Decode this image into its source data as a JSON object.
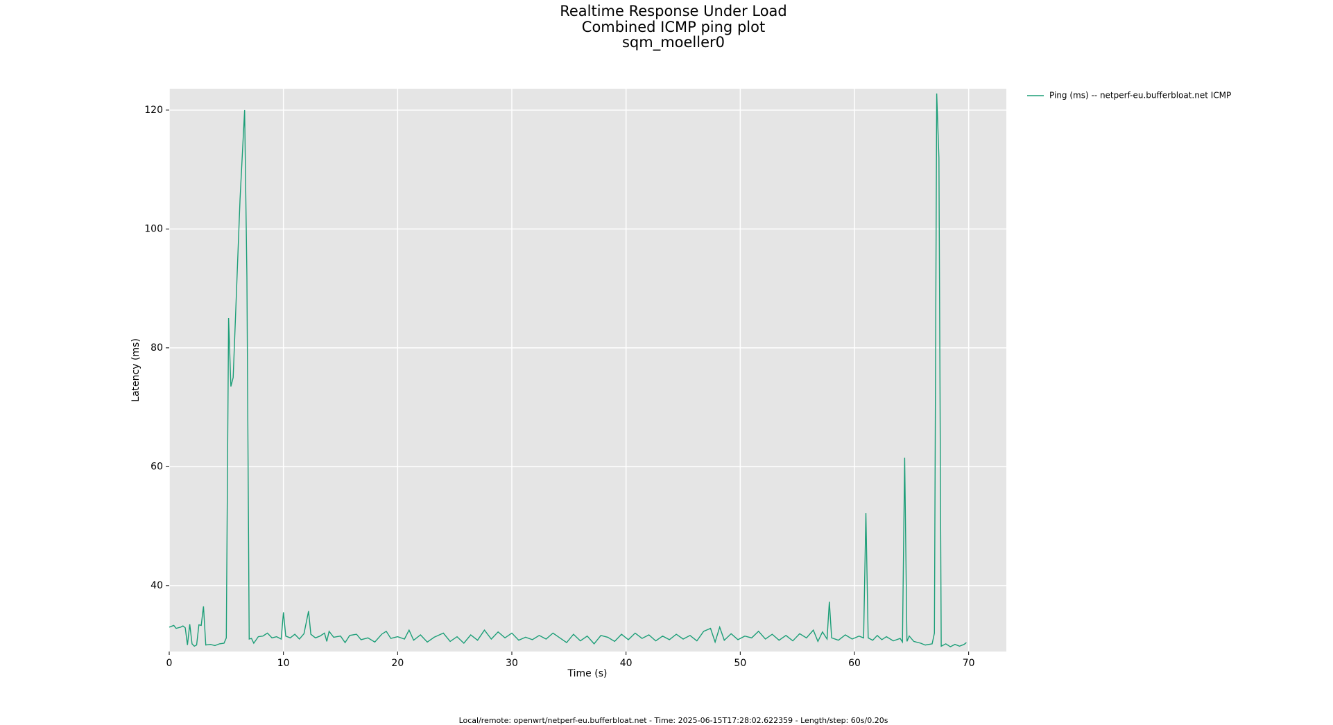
{
  "chart_data": {
    "type": "line",
    "title_lines": [
      "Realtime Response Under Load",
      "Combined ICMP ping plot",
      "sqm_moeller0"
    ],
    "x_label": "Time (s)",
    "y_label": "Latency (ms)",
    "footer": "Local/remote: openwrt/netperf-eu.bufferbloat.net - Time: 2025-06-15T17:28:02.622359 - Length/step: 60s/0.20s",
    "xlim": [
      0,
      73.3
    ],
    "ylim": [
      28.9,
      123.6
    ],
    "xticks": [
      0,
      10,
      20,
      30,
      40,
      50,
      60,
      70
    ],
    "yticks": [
      40,
      60,
      80,
      100,
      120
    ],
    "grid": true,
    "legend_position": "outside-top-right",
    "x": [
      0,
      0.4,
      0.6,
      1.0,
      1.2,
      1.4,
      1.6,
      1.8,
      2.0,
      2.2,
      2.4,
      2.6,
      2.8,
      3.0,
      3.2,
      3.6,
      4.0,
      4.4,
      4.8,
      5.0,
      5.2,
      5.4,
      5.6,
      5.8,
      6.0,
      6.2,
      6.6,
      6.8,
      7.0,
      7.2,
      7.4,
      7.8,
      8.2,
      8.6,
      9.0,
      9.4,
      9.8,
      10.0,
      10.2,
      10.6,
      11.0,
      11.4,
      11.8,
      12.2,
      12.4,
      12.8,
      13.2,
      13.6,
      13.8,
      14.0,
      14.4,
      15.0,
      15.4,
      15.8,
      16.4,
      16.8,
      17.4,
      18.0,
      18.6,
      19.0,
      19.4,
      20.0,
      20.6,
      21.0,
      21.4,
      22.0,
      22.6,
      23.2,
      24.0,
      24.6,
      25.2,
      25.8,
      26.4,
      27.0,
      27.6,
      28.2,
      28.8,
      29.4,
      30.0,
      30.6,
      31.2,
      31.8,
      32.4,
      33.0,
      33.6,
      34.2,
      34.8,
      35.4,
      36.0,
      36.6,
      37.2,
      37.8,
      38.4,
      39.0,
      39.6,
      40.2,
      40.8,
      41.4,
      42.0,
      42.6,
      43.2,
      43.8,
      44.4,
      45.0,
      45.6,
      46.2,
      46.8,
      47.4,
      47.8,
      48.2,
      48.6,
      49.2,
      49.8,
      50.4,
      51.0,
      51.6,
      52.2,
      52.8,
      53.4,
      54.0,
      54.6,
      55.2,
      55.8,
      56.4,
      56.8,
      57.2,
      57.6,
      57.8,
      58.0,
      58.6,
      59.2,
      59.8,
      60.4,
      60.8,
      61.0,
      61.2,
      61.6,
      62.0,
      62.4,
      62.8,
      63.4,
      64.0,
      64.2,
      64.4,
      64.6,
      64.8,
      65.2,
      65.8,
      66.2,
      66.8,
      67.0,
      67.2,
      67.4,
      67.6,
      68.0,
      68.4,
      68.8,
      69.2,
      69.6,
      69.8
    ],
    "series": [
      {
        "name": "Ping (ms) -- netperf-eu.bufferbloat.net ICMP",
        "color": "#1b9e77",
        "values": [
          33,
          33.3,
          32.8,
          33,
          33.2,
          32.9,
          30,
          33.5,
          30.2,
          29.8,
          30,
          33.4,
          33.3,
          36.5,
          30,
          30.1,
          29.9,
          30.2,
          30.3,
          31.2,
          85,
          73.5,
          75,
          85,
          95,
          105,
          120,
          92,
          31,
          31.1,
          30.3,
          31.4,
          31.5,
          32,
          31.2,
          31.4,
          31,
          35.5,
          31.5,
          31.2,
          31.8,
          31,
          31.9,
          35.7,
          31.8,
          31.2,
          31.5,
          32,
          30.6,
          32.3,
          31.3,
          31.5,
          30.4,
          31.6,
          31.8,
          30.9,
          31.2,
          30.5,
          31.8,
          32.3,
          31.1,
          31.4,
          31,
          32.5,
          30.8,
          31.7,
          30.5,
          31.3,
          32,
          30.6,
          31.4,
          30.3,
          31.7,
          30.8,
          32.5,
          31,
          32.2,
          31.2,
          32,
          30.8,
          31.3,
          30.9,
          31.6,
          31,
          32,
          31.2,
          30.4,
          31.8,
          30.7,
          31.5,
          30.2,
          31.6,
          31.3,
          30.6,
          31.8,
          30.9,
          32,
          31.1,
          31.7,
          30.7,
          31.5,
          30.9,
          31.8,
          31,
          31.6,
          30.7,
          32.3,
          32.8,
          30.5,
          33,
          30.8,
          31.9,
          30.9,
          31.5,
          31.2,
          32.3,
          31,
          31.8,
          30.8,
          31.6,
          30.7,
          31.9,
          31.2,
          32.5,
          30.6,
          32.2,
          31,
          37.3,
          31.2,
          30.8,
          31.7,
          31,
          31.5,
          31.2,
          52.2,
          31.2,
          30.8,
          31.6,
          30.9,
          31.4,
          30.7,
          31.1,
          30.5,
          61.5,
          30.6,
          31.5,
          30.6,
          30.3,
          30,
          30.2,
          32,
          122.8,
          112,
          29.8,
          30.2,
          29.7,
          30.1,
          29.8,
          30.1,
          30.4
        ]
      }
    ]
  }
}
